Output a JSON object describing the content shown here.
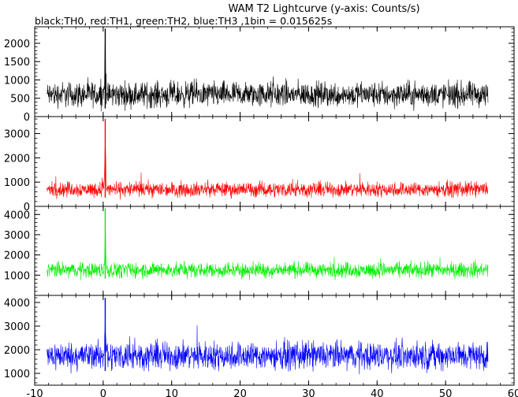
{
  "title": "WAM T2 Lightcurve (y-axis: Counts/s)",
  "subtitle": "black:TH0, red:TH1, green:TH2, blue:TH3 ,1bin = 0.015625s",
  "chart_data": {
    "type": "line",
    "title": "WAM T2 Lightcurve (y-axis: Counts/s)",
    "subtitle": "black:TH0, red:TH1, green:TH2, blue:TH3 ,1bin = 0.015625s",
    "x_ticks": [
      -10,
      0,
      10,
      20,
      30,
      40,
      50,
      60
    ],
    "xlim": [
      -10,
      60
    ],
    "data_x_range": [
      -8.2,
      56.2
    ],
    "panels": [
      {
        "name": "TH0",
        "color": "#000000",
        "ylim": [
          0,
          2450
        ],
        "y_ticks": [
          0,
          500,
          1000,
          1500,
          2000
        ],
        "baseline_mean": 600,
        "noise_amplitude": 380,
        "peak": {
          "x": 0.3,
          "y": 2400
        }
      },
      {
        "name": "TH1",
        "color": "#ff0000",
        "ylim": [
          0,
          3700
        ],
        "y_ticks": [
          0,
          1000,
          2000,
          3000
        ],
        "baseline_mean": 700,
        "noise_amplitude": 340,
        "peak": {
          "x": 0.3,
          "y": 3600
        }
      },
      {
        "name": "TH2",
        "color": "#00ee00",
        "ylim": [
          0,
          4400
        ],
        "y_ticks": [
          1000,
          2000,
          3000,
          4000
        ],
        "baseline_mean": 1250,
        "noise_amplitude": 420,
        "peak": {
          "x": 0.3,
          "y": 4300
        }
      },
      {
        "name": "TH3",
        "color": "#0000ff",
        "ylim": [
          500,
          4300
        ],
        "y_ticks": [
          1000,
          2000,
          3000,
          4000
        ],
        "baseline_mean": 1750,
        "noise_amplitude": 650,
        "peak": {
          "x": 0.3,
          "y": 4200
        }
      }
    ]
  }
}
